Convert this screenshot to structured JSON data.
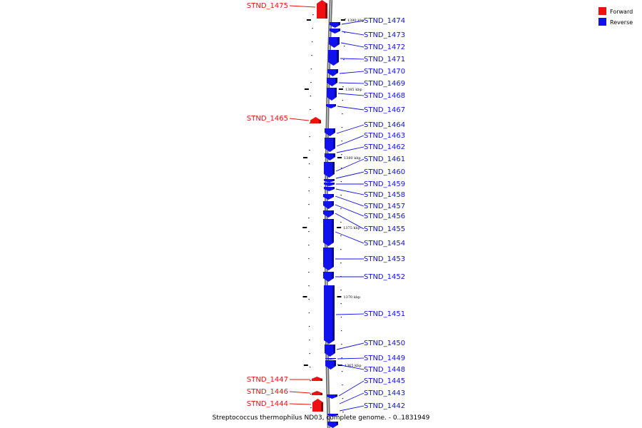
{
  "caption": "Streptococcus thermophilus ND03, complete genome. - 0..1831949",
  "legend": [
    {
      "label": "Forward",
      "color": "#ee1111"
    },
    {
      "label": "Reverse",
      "color": "#1111ee"
    }
  ],
  "colors": {
    "forward": "#ee1111",
    "reverse": "#1111ee",
    "backbone": "#999999"
  },
  "axis_ticks": [
    "1390 kbp",
    "1385 kbp",
    "1380 kbp",
    "1375 kbp",
    "1370 kbp",
    "1365 kbp"
  ],
  "genes": [
    {
      "name": "STND_1475",
      "strand": "forward"
    },
    {
      "name": "STND_1474",
      "strand": "reverse"
    },
    {
      "name": "STND_1473",
      "strand": "reverse"
    },
    {
      "name": "STND_1472",
      "strand": "reverse"
    },
    {
      "name": "STND_1471",
      "strand": "reverse"
    },
    {
      "name": "STND_1470",
      "strand": "reverse"
    },
    {
      "name": "STND_1469",
      "strand": "reverse"
    },
    {
      "name": "STND_1468",
      "strand": "reverse"
    },
    {
      "name": "STND_1467",
      "strand": "reverse"
    },
    {
      "name": "STND_1465",
      "strand": "forward"
    },
    {
      "name": "STND_1464",
      "strand": "reverse"
    },
    {
      "name": "STND_1463",
      "strand": "reverse"
    },
    {
      "name": "STND_1462",
      "strand": "reverse"
    },
    {
      "name": "STND_1461",
      "strand": "reverse"
    },
    {
      "name": "STND_1460",
      "strand": "reverse"
    },
    {
      "name": "STND_1459",
      "strand": "reverse"
    },
    {
      "name": "STND_1458",
      "strand": "reverse"
    },
    {
      "name": "STND_1457",
      "strand": "reverse"
    },
    {
      "name": "STND_1456",
      "strand": "reverse"
    },
    {
      "name": "STND_1455",
      "strand": "reverse"
    },
    {
      "name": "STND_1454",
      "strand": "reverse"
    },
    {
      "name": "STND_1453",
      "strand": "reverse"
    },
    {
      "name": "STND_1452",
      "strand": "reverse"
    },
    {
      "name": "STND_1451",
      "strand": "reverse"
    },
    {
      "name": "STND_1450",
      "strand": "reverse"
    },
    {
      "name": "STND_1449",
      "strand": "reverse"
    },
    {
      "name": "STND_1448",
      "strand": "reverse"
    },
    {
      "name": "STND_1447",
      "strand": "forward"
    },
    {
      "name": "STND_1446",
      "strand": "forward"
    },
    {
      "name": "STND_1445",
      "strand": "reverse"
    },
    {
      "name": "STND_1444",
      "strand": "forward"
    },
    {
      "name": "STND_1443",
      "strand": "reverse"
    },
    {
      "name": "STND_1442",
      "strand": "reverse"
    }
  ]
}
